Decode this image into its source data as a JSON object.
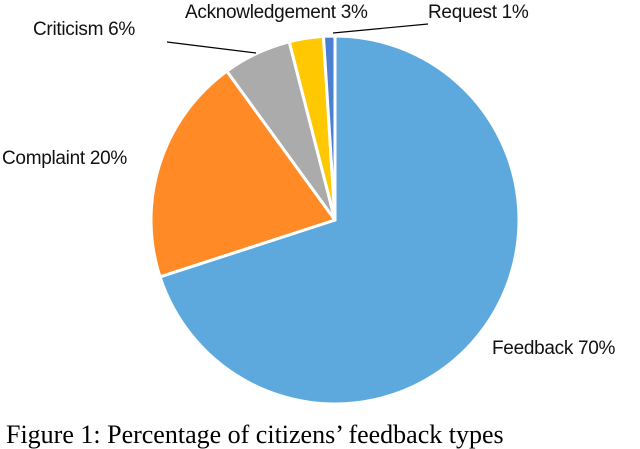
{
  "chart_data": {
    "type": "pie",
    "title": "",
    "start_angle_deg": 0,
    "direction": "clockwise",
    "categories": [
      "Feedback",
      "Complaint",
      "Criticism",
      "Acknowledgement",
      "Request"
    ],
    "values": [
      70,
      20,
      6,
      3,
      1
    ],
    "unit": "%",
    "colors": [
      "#5DA9DE",
      "#FF8A26",
      "#ABABAB",
      "#FFC800",
      "#4B7FD1"
    ],
    "labels": [
      "Feedback 70%",
      "Complaint 20%",
      "Criticism 6%",
      "Acknowledgement 3%",
      "Request 1%"
    ],
    "legend": "none (data labels with leader lines)"
  },
  "labels": {
    "feedback": "Feedback 70%",
    "complaint": "Complaint 20%",
    "criticism": "Criticism 6%",
    "acknowledgement": "Acknowledgement 3%",
    "request": "Request 1%"
  },
  "caption": "Figure 1: Percentage of citizens’ feedback types"
}
